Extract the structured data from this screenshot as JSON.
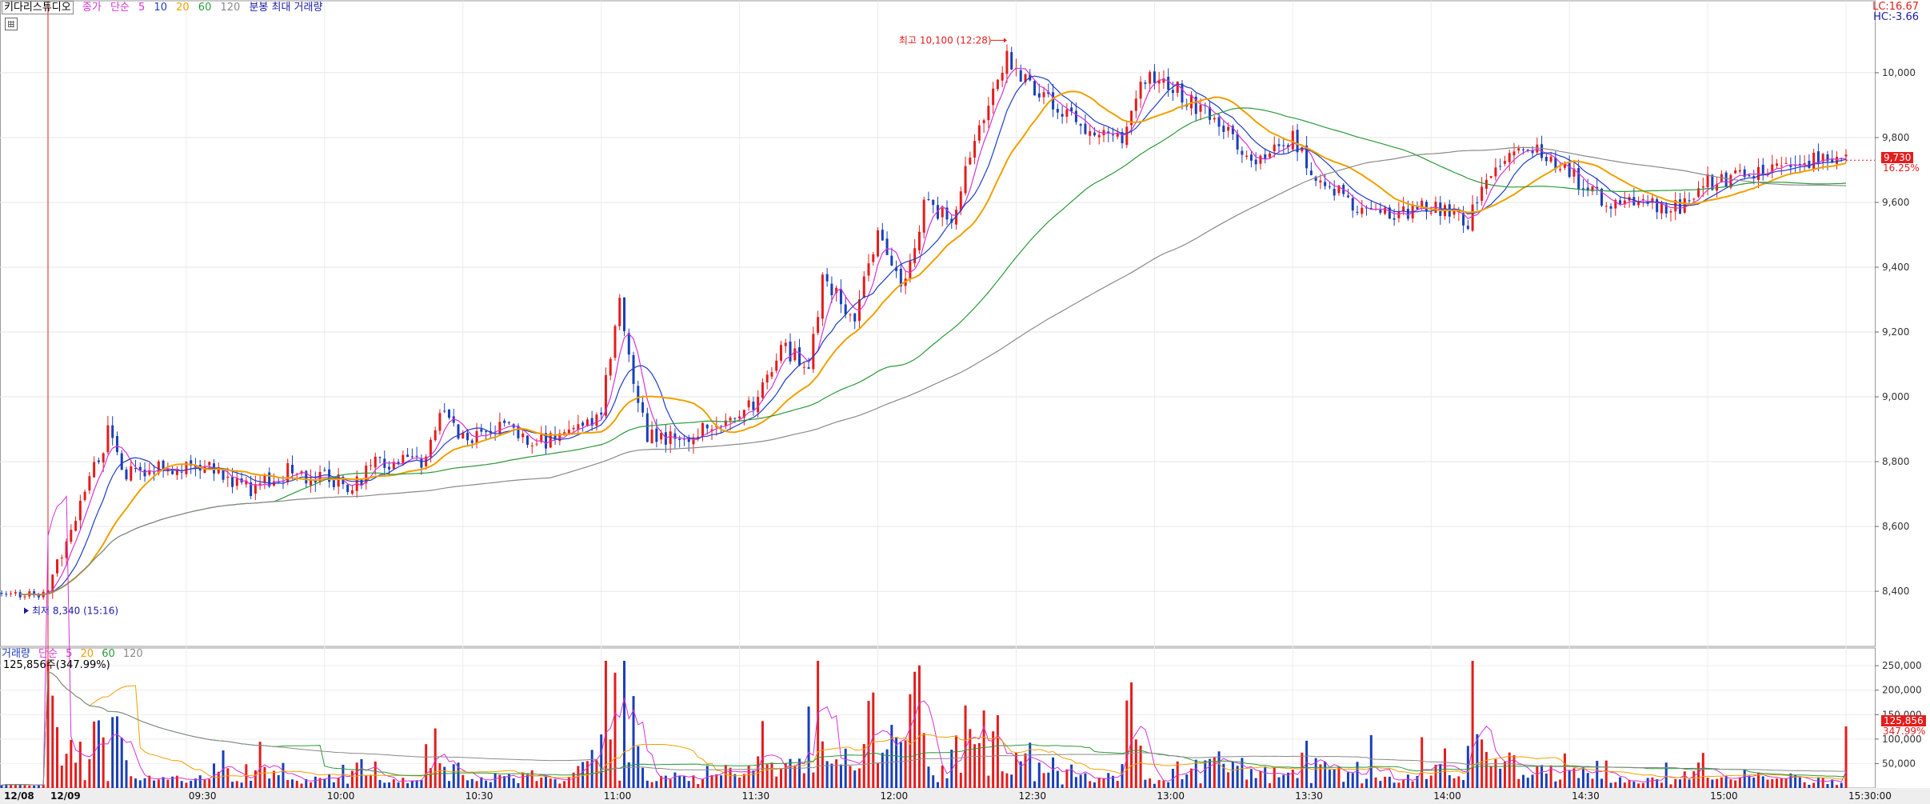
{
  "header": {
    "stock_name": "키다리스튜디오",
    "price_label": "종가",
    "ma_type": "단순",
    "ma_periods": [
      "5",
      "10",
      "20",
      "60",
      "120"
    ],
    "ma_colors": [
      "#d633d6",
      "#1f3fc4",
      "#f0a000",
      "#2b9a3b",
      "#8a8a8a"
    ],
    "extra": "분봉 최대 거래량"
  },
  "corner": {
    "lc": "LC:16.67",
    "hc": "HC:-3.66"
  },
  "current": {
    "price": "9,730",
    "change": "16.25%"
  },
  "annotations": {
    "high": "최고 10,100 (12:28)",
    "low": "최저 8,340 (15:16)"
  },
  "volume_panel": {
    "title": "거래량",
    "ma_type": "단순",
    "ma_periods": [
      "5",
      "20",
      "60",
      "120"
    ],
    "info": "125,856주(347.99%)",
    "current": "125,856",
    "current_ratio": "347.99%"
  },
  "chart_data": {
    "type": "candlestick",
    "y_axis_ticks": [
      "8,400",
      "8,600",
      "8,800",
      "9,000",
      "9,200",
      "9,400",
      "9,600",
      "9,800",
      "10,000"
    ],
    "ylim": [
      8230,
      10180
    ],
    "volume_axis_ticks": [
      "50,000",
      "100,000",
      "150,000",
      "200,000",
      "250,000"
    ],
    "volume_ylim": [
      0,
      260000
    ],
    "x_axis_ticks": [
      "12/08",
      "12/09",
      "09:30",
      "10:00",
      "10:30",
      "11:00",
      "11:30",
      "12:00",
      "12:30",
      "13:00",
      "13:30",
      "14:00",
      "14:30",
      "15:00",
      "15:30:00"
    ],
    "session_start": "09:00",
    "session_end": "15:30",
    "pre_session_bars": 10,
    "price_keyframes": [
      {
        "t": "09:00",
        "p": 8390
      },
      {
        "t": "09:02",
        "p": 8480
      },
      {
        "t": "09:06",
        "p": 8620
      },
      {
        "t": "09:10",
        "p": 8780
      },
      {
        "t": "09:13",
        "p": 8890
      },
      {
        "t": "09:17",
        "p": 8760
      },
      {
        "t": "09:26",
        "p": 8790
      },
      {
        "t": "09:35",
        "p": 8780
      },
      {
        "t": "09:44",
        "p": 8710
      },
      {
        "t": "09:52",
        "p": 8770
      },
      {
        "t": "10:06",
        "p": 8730
      },
      {
        "t": "10:12",
        "p": 8800
      },
      {
        "t": "10:22",
        "p": 8800
      },
      {
        "t": "10:25",
        "p": 8960
      },
      {
        "t": "10:30",
        "p": 8880
      },
      {
        "t": "10:39",
        "p": 8900
      },
      {
        "t": "10:46",
        "p": 8860
      },
      {
        "t": "10:55",
        "p": 8890
      },
      {
        "t": "11:00",
        "p": 8960
      },
      {
        "t": "11:04",
        "p": 9280
      },
      {
        "t": "11:07",
        "p": 9060
      },
      {
        "t": "11:10",
        "p": 8880
      },
      {
        "t": "11:15",
        "p": 8870
      },
      {
        "t": "11:23",
        "p": 8900
      },
      {
        "t": "11:33",
        "p": 8980
      },
      {
        "t": "11:39",
        "p": 9160
      },
      {
        "t": "11:45",
        "p": 9090
      },
      {
        "t": "11:48",
        "p": 9360
      },
      {
        "t": "11:55",
        "p": 9250
      },
      {
        "t": "12:00",
        "p": 9500
      },
      {
        "t": "12:06",
        "p": 9340
      },
      {
        "t": "12:10",
        "p": 9600
      },
      {
        "t": "12:16",
        "p": 9550
      },
      {
        "t": "12:21",
        "p": 9800
      },
      {
        "t": "12:28",
        "p": 10050
      },
      {
        "t": "12:34",
        "p": 9950
      },
      {
        "t": "12:43",
        "p": 9850
      },
      {
        "t": "12:53",
        "p": 9790
      },
      {
        "t": "12:57",
        "p": 9980
      },
      {
        "t": "13:02",
        "p": 9980
      },
      {
        "t": "13:09",
        "p": 9900
      },
      {
        "t": "13:15",
        "p": 9820
      },
      {
        "t": "13:22",
        "p": 9740
      },
      {
        "t": "13:30",
        "p": 9800
      },
      {
        "t": "13:35",
        "p": 9680
      },
      {
        "t": "13:45",
        "p": 9580
      },
      {
        "t": "13:53",
        "p": 9560
      },
      {
        "t": "14:00",
        "p": 9590
      },
      {
        "t": "14:04",
        "p": 9560
      },
      {
        "t": "14:08",
        "p": 9540
      },
      {
        "t": "14:12",
        "p": 9690
      },
      {
        "t": "14:19",
        "p": 9790
      },
      {
        "t": "14:30",
        "p": 9690
      },
      {
        "t": "14:39",
        "p": 9590
      },
      {
        "t": "14:45",
        "p": 9590
      },
      {
        "t": "14:55",
        "p": 9590
      },
      {
        "t": "15:00",
        "p": 9660
      },
      {
        "t": "15:10",
        "p": 9690
      },
      {
        "t": "15:20",
        "p": 9730
      }
    ]
  }
}
